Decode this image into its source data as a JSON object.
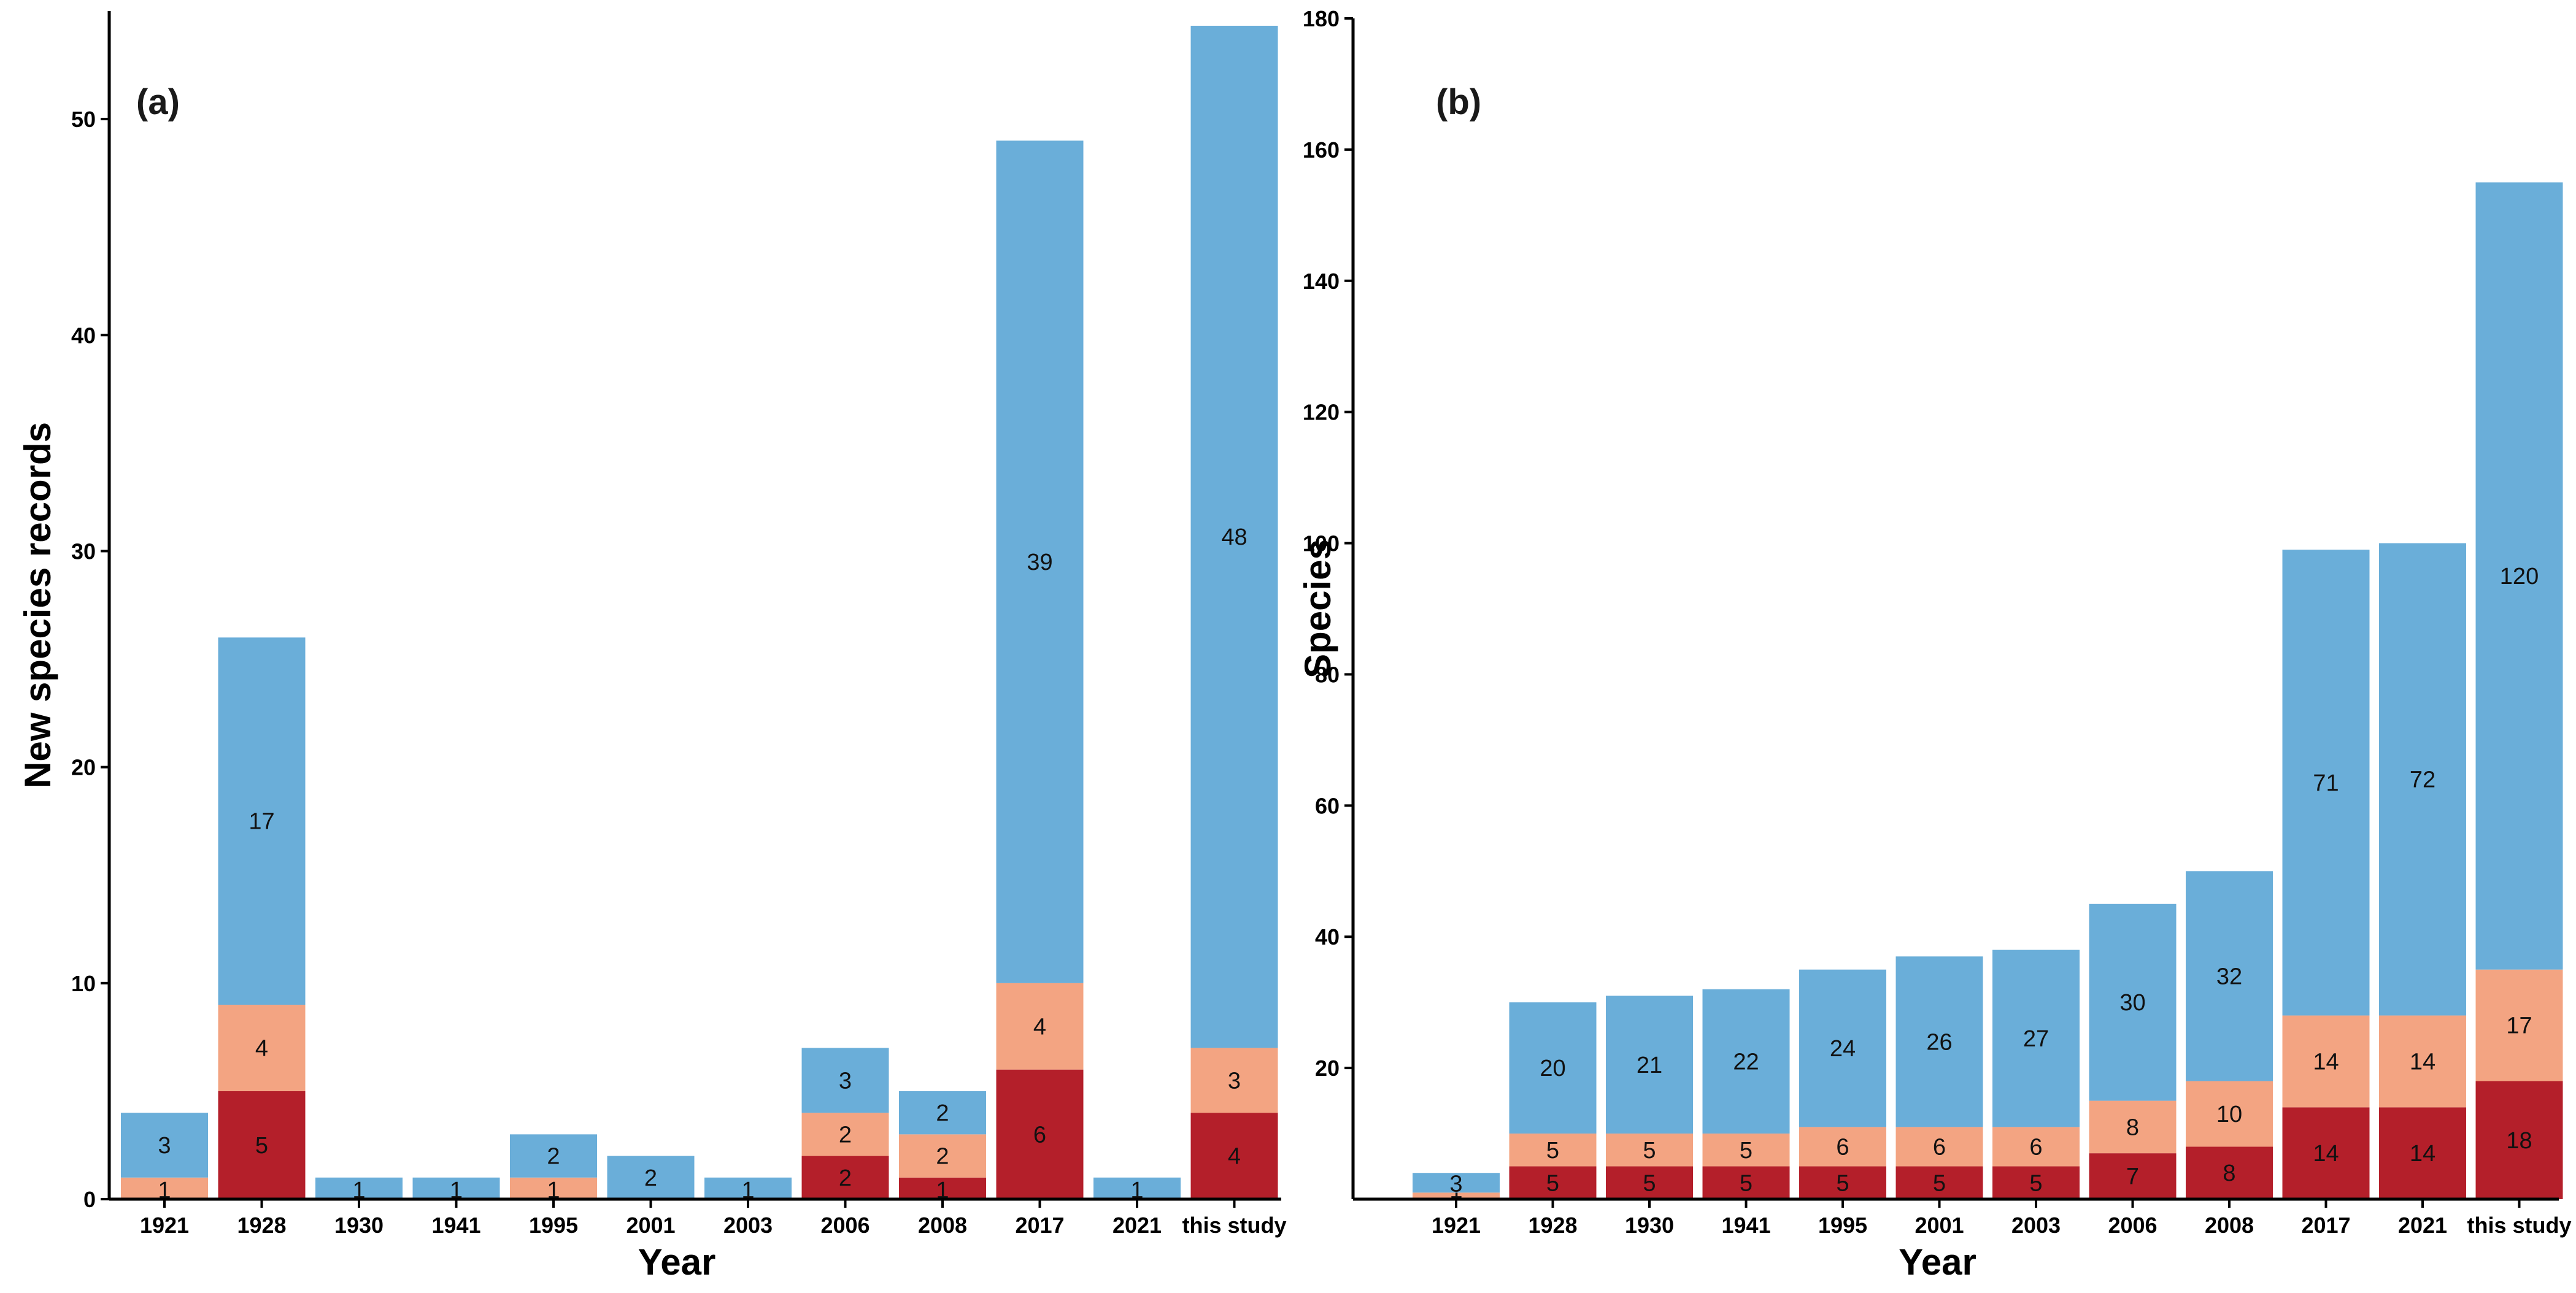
{
  "colors": {
    "low": "#b41f2a",
    "mid": "#f3a482",
    "high": "#6aaed9"
  },
  "chart_data": [
    {
      "type": "bar",
      "stacked": true,
      "panel_label": "(a)",
      "xlabel": "Year",
      "ylabel": "New species records",
      "ylim": [
        0,
        55
      ],
      "yticks": [
        0,
        10,
        20,
        30,
        40,
        50
      ],
      "categories": [
        "1921",
        "1928",
        "1930",
        "1941",
        "1995",
        "2001",
        "2003",
        "2006",
        "2008",
        "2017",
        "2021",
        "this study"
      ],
      "series": [
        {
          "name": "dark red",
          "color_key": "low",
          "values": [
            0,
            5,
            0,
            0,
            0,
            0,
            0,
            2,
            1,
            6,
            0,
            4
          ]
        },
        {
          "name": "salmon",
          "color_key": "mid",
          "values": [
            1,
            4,
            0,
            0,
            1,
            0,
            0,
            2,
            2,
            4,
            0,
            3
          ]
        },
        {
          "name": "blue",
          "color_key": "high",
          "values": [
            3,
            17,
            1,
            1,
            2,
            2,
            1,
            3,
            2,
            39,
            1,
            48
          ]
        }
      ],
      "grid": false
    },
    {
      "type": "bar",
      "stacked": true,
      "panel_label": "(b)",
      "xlabel": "Year",
      "ylabel": "Species",
      "ylim": [
        0,
        180
      ],
      "yticks": [
        20,
        40,
        60,
        80,
        100,
        120,
        140,
        160,
        180
      ],
      "categories": [
        "1921",
        "1928",
        "1930",
        "1941",
        "1995",
        "2001",
        "2003",
        "2006",
        "2008",
        "2017",
        "2021",
        "this study"
      ],
      "series": [
        {
          "name": "dark red",
          "color_key": "low",
          "values": [
            0,
            5,
            5,
            5,
            5,
            5,
            5,
            7,
            8,
            14,
            14,
            18
          ]
        },
        {
          "name": "salmon",
          "color_key": "mid",
          "values": [
            1,
            5,
            5,
            5,
            6,
            6,
            6,
            8,
            10,
            14,
            14,
            17
          ]
        },
        {
          "name": "blue",
          "color_key": "high",
          "values": [
            3,
            20,
            21,
            22,
            24,
            26,
            27,
            30,
            32,
            71,
            72,
            120
          ]
        }
      ],
      "grid": false
    }
  ]
}
